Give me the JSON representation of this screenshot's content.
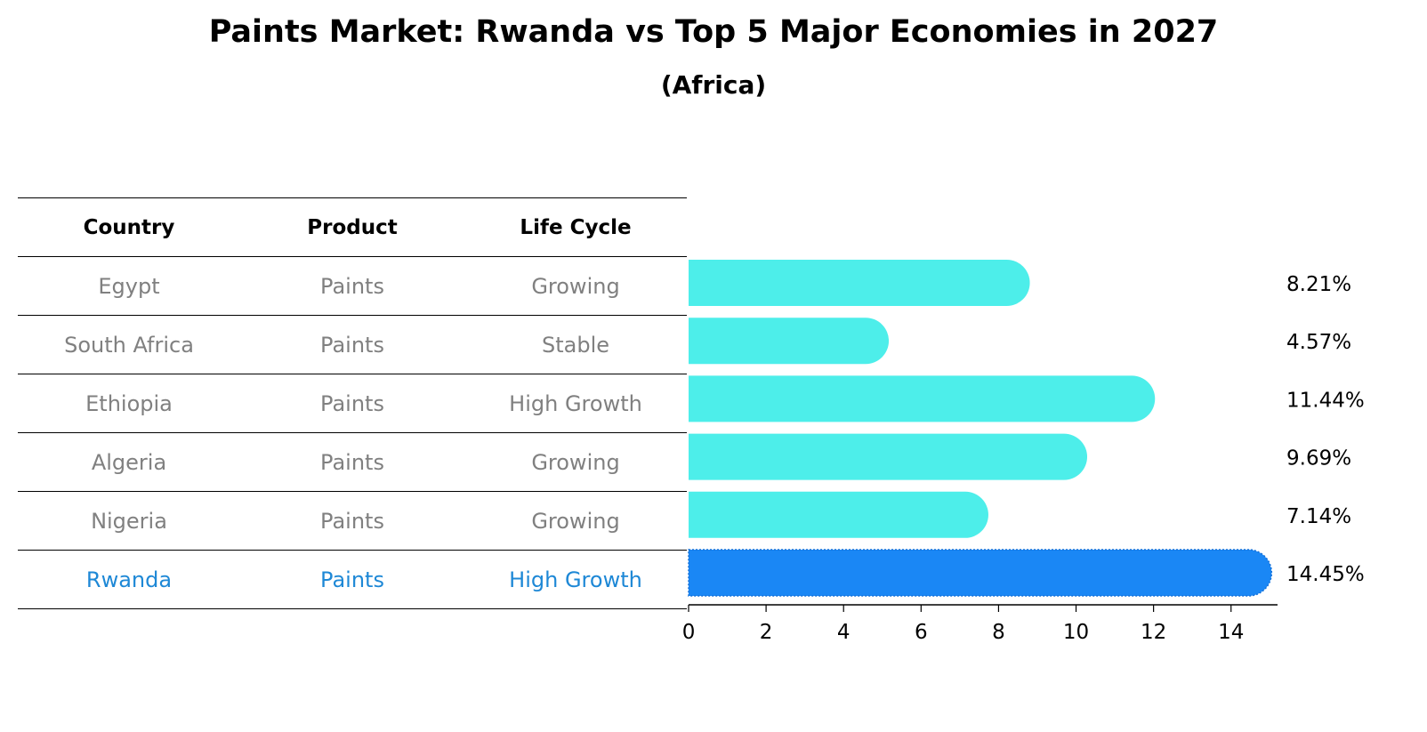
{
  "title": "Paints Market: Rwanda vs Top 5 Major Economies in 2027",
  "subtitle": "(Africa)",
  "table": {
    "headers": [
      "Country",
      "Product",
      "Life Cycle"
    ],
    "rows": [
      [
        "Egypt",
        "Paints",
        "Growing"
      ],
      [
        "South Africa",
        "Paints",
        "Stable"
      ],
      [
        "Ethiopia",
        "Paints",
        "High Growth"
      ],
      [
        "Algeria",
        "Paints",
        "Growing"
      ],
      [
        "Nigeria",
        "Paints",
        "Growing"
      ],
      [
        "Rwanda",
        "Paints",
        "High Growth"
      ]
    ],
    "highlight_row": 5
  },
  "colors": {
    "bar": "#4deeea",
    "highlight": "#1a87f5",
    "text_muted": "#808080",
    "text_highlight": "#1e88d6"
  },
  "chart_data": {
    "type": "bar",
    "orientation": "horizontal",
    "categories": [
      "Egypt",
      "South Africa",
      "Ethiopia",
      "Algeria",
      "Nigeria",
      "Rwanda"
    ],
    "values": [
      8.21,
      4.57,
      11.44,
      9.69,
      7.14,
      14.45
    ],
    "value_labels": [
      "8.21%",
      "4.57%",
      "11.44%",
      "9.69%",
      "7.14%",
      "14.45%"
    ],
    "highlight_index": 5,
    "xlim": [
      0,
      15.2
    ],
    "xticks": [
      0,
      2,
      4,
      6,
      8,
      10,
      12,
      14
    ],
    "grid": false,
    "bar_style": "rounded"
  }
}
